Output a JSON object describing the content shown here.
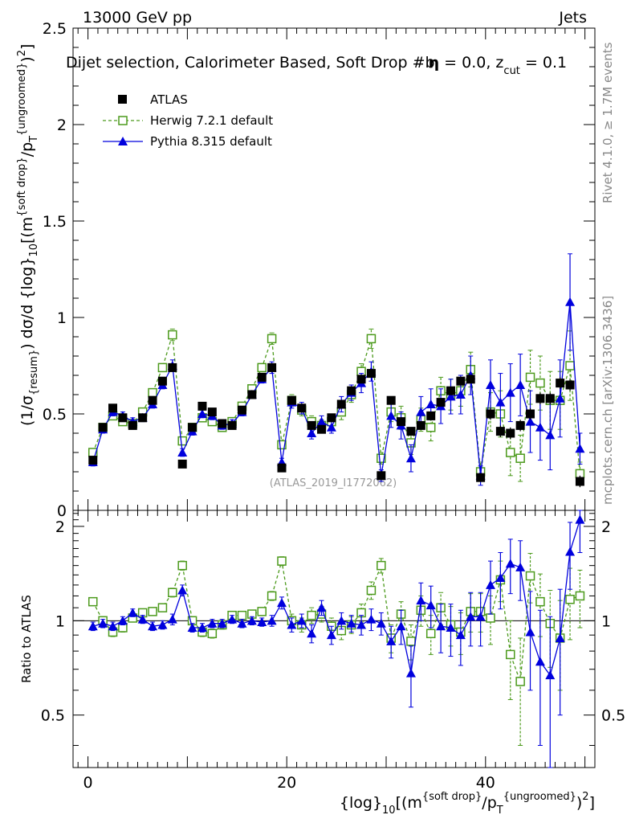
{
  "chart_data": [
    {
      "type": "scatter",
      "panel": "main",
      "header_left": "13000 GeV pp",
      "header_right": "Jets",
      "title_parts": [
        "Dijet selection, Calorimeter Based, Soft Drop #b",
        "η",
        " = 0.0, z",
        "cut",
        " = 0.1"
      ],
      "ylabel_parts": [
        "(1/σ",
        "{resum}",
        ") dσ/d {log}",
        "10",
        "[(m",
        "{soft drop}",
        "/p",
        "T",
        "{ungroomed}",
        ")",
        "2",
        "]"
      ],
      "xlabel_parts": [
        "{log}",
        "10",
        "[(m",
        "{soft drop}",
        "/p",
        "T",
        "{ungroomed}",
        ")",
        "2",
        "]"
      ],
      "watermark": "(ATLAS_2019_I1772062)",
      "side_text_top": "Rivet 4.1.0, ≥ 1.7M events",
      "side_text_bottom": "mcplots.cern.ch [arXiv:1306.3436]",
      "xlim": [
        -1.5,
        51
      ],
      "ylim": [
        0,
        2.5
      ],
      "yticks": [
        0,
        0.5,
        1,
        1.5,
        2,
        2.5
      ],
      "ytick_labels": [
        "0",
        "0.5",
        "1",
        "1.5",
        "2",
        "2.5"
      ],
      "legend": [
        {
          "label": "ATLAS",
          "style": "data"
        },
        {
          "label": "Herwig 7.2.1 default",
          "style": "herwig"
        },
        {
          "label": "Pythia 8.315 default",
          "style": "pythia"
        }
      ],
      "series": [
        {
          "name": "ATLAS",
          "color": "#000000",
          "x": [
            0.5,
            1.5,
            2.5,
            3.5,
            4.5,
            5.5,
            6.5,
            7.5,
            8.5,
            9.5,
            10.5,
            11.5,
            12.5,
            13.5,
            14.5,
            15.5,
            16.5,
            17.5,
            18.5,
            19.5,
            20.5,
            21.5,
            22.5,
            23.5,
            24.5,
            25.5,
            26.5,
            27.5,
            28.5,
            29.5,
            30.5,
            31.5,
            32.5,
            33.5,
            34.5,
            35.5,
            36.5,
            37.5,
            38.5,
            39.5,
            40.5,
            41.5,
            42.5,
            43.5,
            44.5,
            45.5,
            46.5,
            47.5,
            48.5,
            49.5
          ],
          "y": [
            0.26,
            0.43,
            0.53,
            0.48,
            0.44,
            0.48,
            0.57,
            0.67,
            0.74,
            0.24,
            0.43,
            0.54,
            0.51,
            0.45,
            0.44,
            0.52,
            0.6,
            0.69,
            0.74,
            0.22,
            0.57,
            0.53,
            0.44,
            0.42,
            0.48,
            0.55,
            0.62,
            0.68,
            0.71,
            0.18,
            0.57,
            0.46,
            0.41,
            0.44,
            0.49,
            0.56,
            0.62,
            0.67,
            0.68,
            0.17,
            0.5,
            0.41,
            0.4,
            0.44,
            0.5,
            0.58,
            0.58,
            0.66,
            0.65,
            0.15
          ],
          "err": [
            0.01,
            0.01,
            0.01,
            0.01,
            0.01,
            0.01,
            0.01,
            0.01,
            0.01,
            0.01,
            0.01,
            0.01,
            0.01,
            0.01,
            0.01,
            0.01,
            0.01,
            0.01,
            0.01,
            0.01,
            0.02,
            0.02,
            0.02,
            0.02,
            0.02,
            0.02,
            0.02,
            0.02,
            0.02,
            0.02,
            0.02,
            0.02,
            0.02,
            0.02,
            0.02,
            0.02,
            0.02,
            0.02,
            0.02,
            0.02,
            0.03,
            0.03,
            0.03,
            0.03,
            0.03,
            0.03,
            0.03,
            0.03,
            0.03,
            0.03
          ]
        },
        {
          "name": "Herwig 7.2.1 default",
          "color": "#4c9a1c",
          "x": [
            0.5,
            1.5,
            2.5,
            3.5,
            4.5,
            5.5,
            6.5,
            7.5,
            8.5,
            9.5,
            10.5,
            11.5,
            12.5,
            13.5,
            14.5,
            15.5,
            16.5,
            17.5,
            18.5,
            19.5,
            20.5,
            21.5,
            22.5,
            23.5,
            24.5,
            25.5,
            26.5,
            27.5,
            28.5,
            29.5,
            30.5,
            31.5,
            32.5,
            33.5,
            34.5,
            35.5,
            36.5,
            37.5,
            38.5,
            39.5,
            40.5,
            41.5,
            42.5,
            43.5,
            44.5,
            45.5,
            46.5,
            47.5,
            48.5,
            49.5
          ],
          "y": [
            0.3,
            0.43,
            0.49,
            0.46,
            0.45,
            0.51,
            0.61,
            0.74,
            0.91,
            0.36,
            0.43,
            0.48,
            0.46,
            0.43,
            0.46,
            0.54,
            0.63,
            0.74,
            0.89,
            0.34,
            0.57,
            0.52,
            0.46,
            0.44,
            0.46,
            0.51,
            0.6,
            0.72,
            0.89,
            0.27,
            0.51,
            0.48,
            0.35,
            0.47,
            0.43,
            0.62,
            0.6,
            0.62,
            0.73,
            0.2,
            0.51,
            0.5,
            0.3,
            0.27,
            0.69,
            0.66,
            0.57,
            0.57,
            0.75,
            0.19
          ],
          "err": [
            0.02,
            0.02,
            0.02,
            0.02,
            0.02,
            0.02,
            0.02,
            0.02,
            0.03,
            0.02,
            0.02,
            0.02,
            0.02,
            0.02,
            0.02,
            0.02,
            0.02,
            0.02,
            0.03,
            0.02,
            0.03,
            0.03,
            0.03,
            0.03,
            0.03,
            0.04,
            0.04,
            0.04,
            0.05,
            0.03,
            0.05,
            0.06,
            0.06,
            0.06,
            0.07,
            0.07,
            0.08,
            0.08,
            0.09,
            0.05,
            0.1,
            0.12,
            0.12,
            0.12,
            0.14,
            0.14,
            0.15,
            0.15,
            0.18,
            0.06
          ]
        },
        {
          "name": "Pythia 8.315 default",
          "color": "#0000dd",
          "x": [
            0.5,
            1.5,
            2.5,
            3.5,
            4.5,
            5.5,
            6.5,
            7.5,
            8.5,
            9.5,
            10.5,
            11.5,
            12.5,
            13.5,
            14.5,
            15.5,
            16.5,
            17.5,
            18.5,
            19.5,
            20.5,
            21.5,
            22.5,
            23.5,
            24.5,
            25.5,
            26.5,
            27.5,
            28.5,
            29.5,
            30.5,
            31.5,
            32.5,
            33.5,
            34.5,
            35.5,
            36.5,
            37.5,
            38.5,
            39.5,
            40.5,
            41.5,
            42.5,
            43.5,
            44.5,
            45.5,
            46.5,
            47.5,
            48.5,
            49.5
          ],
          "y": [
            0.25,
            0.42,
            0.51,
            0.49,
            0.46,
            0.48,
            0.55,
            0.65,
            0.75,
            0.3,
            0.41,
            0.5,
            0.49,
            0.44,
            0.45,
            0.51,
            0.6,
            0.68,
            0.74,
            0.25,
            0.56,
            0.53,
            0.4,
            0.46,
            0.43,
            0.55,
            0.61,
            0.66,
            0.72,
            0.18,
            0.49,
            0.44,
            0.27,
            0.51,
            0.55,
            0.54,
            0.59,
            0.6,
            0.7,
            0.18,
            0.65,
            0.56,
            0.61,
            0.65,
            0.46,
            0.43,
            0.39,
            0.58,
            1.08,
            0.32
          ],
          "err": [
            0.02,
            0.02,
            0.02,
            0.02,
            0.02,
            0.02,
            0.02,
            0.02,
            0.03,
            0.02,
            0.02,
            0.02,
            0.02,
            0.02,
            0.02,
            0.02,
            0.02,
            0.02,
            0.03,
            0.02,
            0.03,
            0.03,
            0.03,
            0.03,
            0.03,
            0.04,
            0.04,
            0.05,
            0.05,
            0.03,
            0.06,
            0.07,
            0.07,
            0.08,
            0.08,
            0.09,
            0.09,
            0.1,
            0.1,
            0.05,
            0.13,
            0.15,
            0.15,
            0.16,
            0.16,
            0.17,
            0.18,
            0.2,
            0.25,
            0.08
          ]
        }
      ]
    },
    {
      "type": "scatter",
      "panel": "ratio",
      "ylabel": "Ratio to ATLAS",
      "xlabel": "{log}10[(m{soft drop}/pT{ungroomed})2]",
      "xlim": [
        -1.5,
        51
      ],
      "ylim": [
        0.34,
        2.25
      ],
      "xticks": [
        0,
        20,
        40
      ],
      "xtick_labels": [
        "0",
        "20",
        "40"
      ],
      "yticks": [
        0.5,
        1,
        2
      ],
      "ytick_labels": [
        "0.5",
        "1",
        "2"
      ],
      "series": [
        {
          "name": "Herwig 7.2.1 default",
          "color": "#4c9a1c",
          "x": [
            0.5,
            1.5,
            2.5,
            3.5,
            4.5,
            5.5,
            6.5,
            7.5,
            8.5,
            9.5,
            10.5,
            11.5,
            12.5,
            13.5,
            14.5,
            15.5,
            16.5,
            17.5,
            18.5,
            19.5,
            20.5,
            21.5,
            22.5,
            23.5,
            24.5,
            25.5,
            26.5,
            27.5,
            28.5,
            29.5,
            30.5,
            31.5,
            32.5,
            33.5,
            34.5,
            35.5,
            36.5,
            37.5,
            38.5,
            39.5,
            40.5,
            41.5,
            42.5,
            43.5,
            44.5,
            45.5,
            46.5,
            47.5,
            48.5,
            49.5
          ],
          "y": [
            1.15,
            1.0,
            0.92,
            0.95,
            1.02,
            1.06,
            1.07,
            1.1,
            1.23,
            1.5,
            1.0,
            0.92,
            0.91,
            0.97,
            1.04,
            1.04,
            1.05,
            1.07,
            1.2,
            1.55,
            1.0,
            0.97,
            1.04,
            1.05,
            0.96,
            0.93,
            0.97,
            1.06,
            1.25,
            1.5,
            0.88,
            1.05,
            0.86,
            1.08,
            0.91,
            1.1,
            0.97,
            0.92,
            1.07,
            1.07,
            1.02,
            1.35,
            0.78,
            0.64,
            1.39,
            1.15,
            0.98,
            0.88,
            1.17,
            1.2
          ],
          "err": [
            0.03,
            0.03,
            0.03,
            0.03,
            0.03,
            0.03,
            0.03,
            0.03,
            0.04,
            0.05,
            0.03,
            0.03,
            0.03,
            0.03,
            0.03,
            0.03,
            0.03,
            0.03,
            0.04,
            0.05,
            0.05,
            0.05,
            0.06,
            0.06,
            0.06,
            0.06,
            0.06,
            0.07,
            0.08,
            0.08,
            0.09,
            0.1,
            0.11,
            0.12,
            0.13,
            0.13,
            0.14,
            0.14,
            0.15,
            0.15,
            0.18,
            0.2,
            0.22,
            0.24,
            0.25,
            0.26,
            0.27,
            0.28,
            0.3,
            0.25
          ]
        },
        {
          "name": "Pythia 8.315 default",
          "color": "#0000dd",
          "x": [
            0.5,
            1.5,
            2.5,
            3.5,
            4.5,
            5.5,
            6.5,
            7.5,
            8.5,
            9.5,
            10.5,
            11.5,
            12.5,
            13.5,
            14.5,
            15.5,
            16.5,
            17.5,
            18.5,
            19.5,
            20.5,
            21.5,
            22.5,
            23.5,
            24.5,
            25.5,
            26.5,
            27.5,
            28.5,
            29.5,
            30.5,
            31.5,
            32.5,
            33.5,
            34.5,
            35.5,
            36.5,
            37.5,
            38.5,
            39.5,
            40.5,
            41.5,
            42.5,
            43.5,
            44.5,
            45.5,
            46.5,
            47.5,
            48.5,
            49.5
          ],
          "y": [
            0.96,
            0.98,
            0.96,
            1.0,
            1.06,
            1.01,
            0.96,
            0.97,
            1.01,
            1.25,
            0.95,
            0.95,
            0.98,
            0.98,
            1.01,
            0.98,
            1.0,
            0.99,
            1.0,
            1.14,
            0.97,
            1.0,
            0.91,
            1.1,
            0.9,
            1.0,
            0.98,
            0.97,
            1.01,
            0.98,
            0.86,
            0.96,
            0.68,
            1.16,
            1.12,
            0.96,
            0.95,
            0.9,
            1.03,
            1.03,
            1.3,
            1.37,
            1.52,
            1.48,
            0.92,
            0.74,
            0.67,
            0.88,
            1.66,
            2.1
          ],
          "err": [
            0.03,
            0.03,
            0.03,
            0.03,
            0.03,
            0.03,
            0.03,
            0.03,
            0.04,
            0.05,
            0.03,
            0.03,
            0.03,
            0.03,
            0.03,
            0.03,
            0.03,
            0.03,
            0.04,
            0.05,
            0.05,
            0.05,
            0.06,
            0.06,
            0.06,
            0.06,
            0.06,
            0.07,
            0.08,
            0.08,
            0.1,
            0.12,
            0.15,
            0.16,
            0.17,
            0.17,
            0.18,
            0.18,
            0.2,
            0.2,
            0.25,
            0.28,
            0.3,
            0.32,
            0.32,
            0.34,
            0.36,
            0.38,
            0.4,
            0.45
          ]
        }
      ]
    }
  ]
}
